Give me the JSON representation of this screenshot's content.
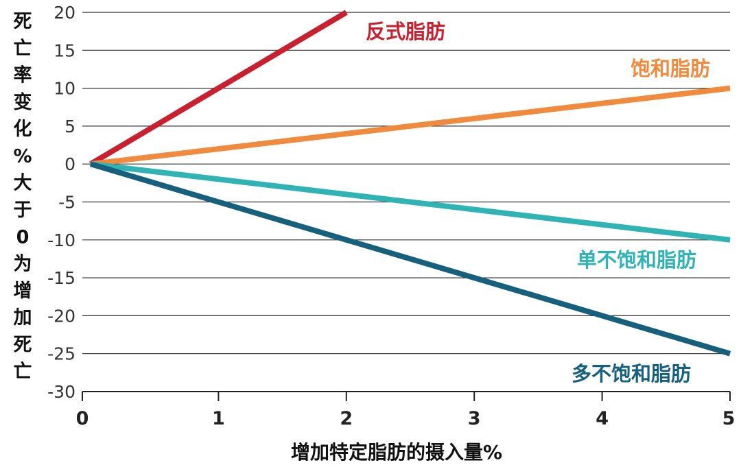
{
  "chart_data": {
    "type": "line",
    "xlabel": "增加特定脂肪的摄入量%",
    "ylabel": "死亡率变化%大于0为增加死亡",
    "xlim": [
      0,
      5
    ],
    "ylim": [
      -30,
      20
    ],
    "x_ticks": [
      "0",
      "1",
      "2",
      "3",
      "4",
      "5"
    ],
    "y_ticks": [
      "20",
      "15",
      "10",
      "5",
      "0",
      "-5",
      "-10",
      "-15",
      "-20",
      "-25",
      "-30"
    ],
    "grid": true,
    "series": [
      {
        "name": "反式脂肪",
        "color": "#c8202f",
        "points": [
          [
            0,
            0
          ],
          [
            2,
            20
          ]
        ]
      },
      {
        "name": "饱和脂肪",
        "color": "#f08a3c",
        "points": [
          [
            0,
            0
          ],
          [
            5,
            10
          ]
        ]
      },
      {
        "name": "单不饱和脂肪",
        "color": "#2fb3b5",
        "points": [
          [
            0,
            0
          ],
          [
            5,
            -10
          ]
        ]
      },
      {
        "name": "多不饱和脂肪",
        "color": "#165f7d",
        "points": [
          [
            0,
            0
          ],
          [
            5,
            -25
          ]
        ]
      }
    ]
  }
}
